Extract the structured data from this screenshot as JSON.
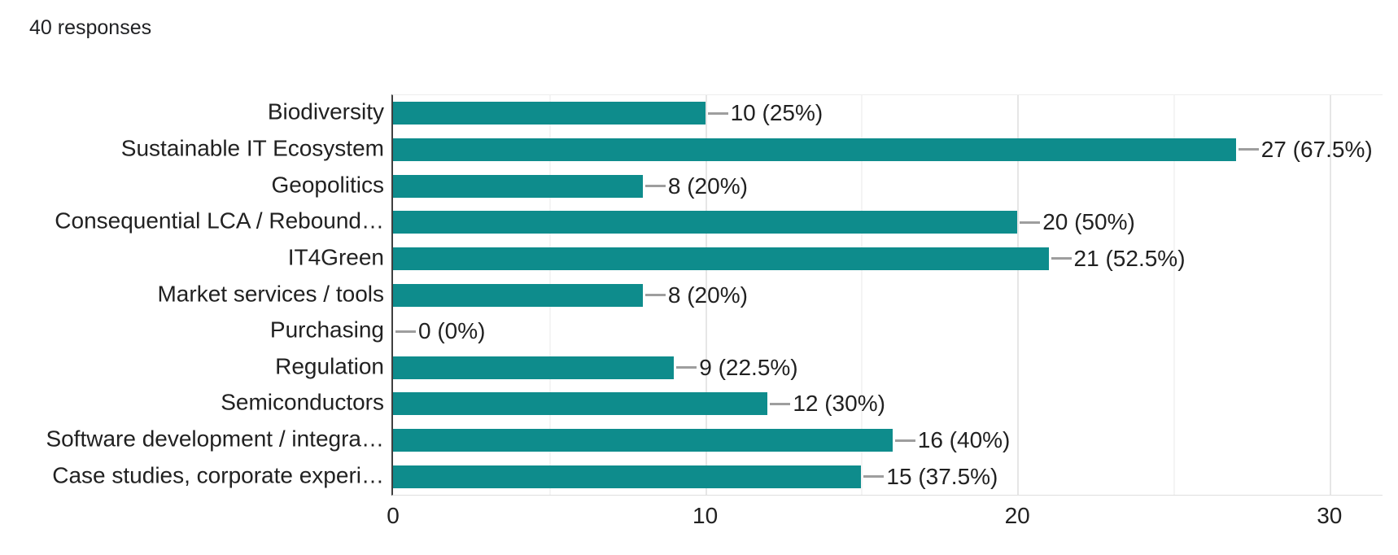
{
  "header": {
    "responses_label": "40 responses"
  },
  "chart_data": {
    "type": "bar",
    "orientation": "horizontal",
    "title": "",
    "xlabel": "",
    "ylabel": "",
    "total_responses": 40,
    "categories": [
      "Biodiversity",
      "Sustainable IT Ecosystem",
      "Geopolitics",
      "Consequential LCA / Rebound…",
      "IT4Green",
      "Market services / tools",
      "Purchasing",
      "Regulation",
      "Semiconductors",
      "Software development / integra…",
      "Case studies, corporate experi…"
    ],
    "values": [
      10,
      27,
      8,
      20,
      21,
      8,
      0,
      9,
      12,
      16,
      15
    ],
    "value_labels": [
      "10 (25%)",
      "27 (67.5%)",
      "8 (20%)",
      "20 (50%)",
      "21 (52.5%)",
      "8 (20%)",
      "0 (0%)",
      "9 (22.5%)",
      "12 (30%)",
      "16 (40%)",
      "15 (37.5%)"
    ],
    "xlim": [
      0,
      31.7
    ],
    "x_ticks": [
      0,
      10,
      20,
      30
    ],
    "gridlines": {
      "major": [
        10,
        20,
        30
      ],
      "minor": [
        5,
        15,
        25
      ]
    },
    "legend": "none",
    "colors": {
      "bar": "#0e8c8c",
      "axis_line": "#3f3f3f",
      "grid_major": "#e6e6e6",
      "grid_minor": "#f4f4f4",
      "text": "#212121",
      "callout_line": "#9e9e9e",
      "background": "#ffffff"
    }
  }
}
